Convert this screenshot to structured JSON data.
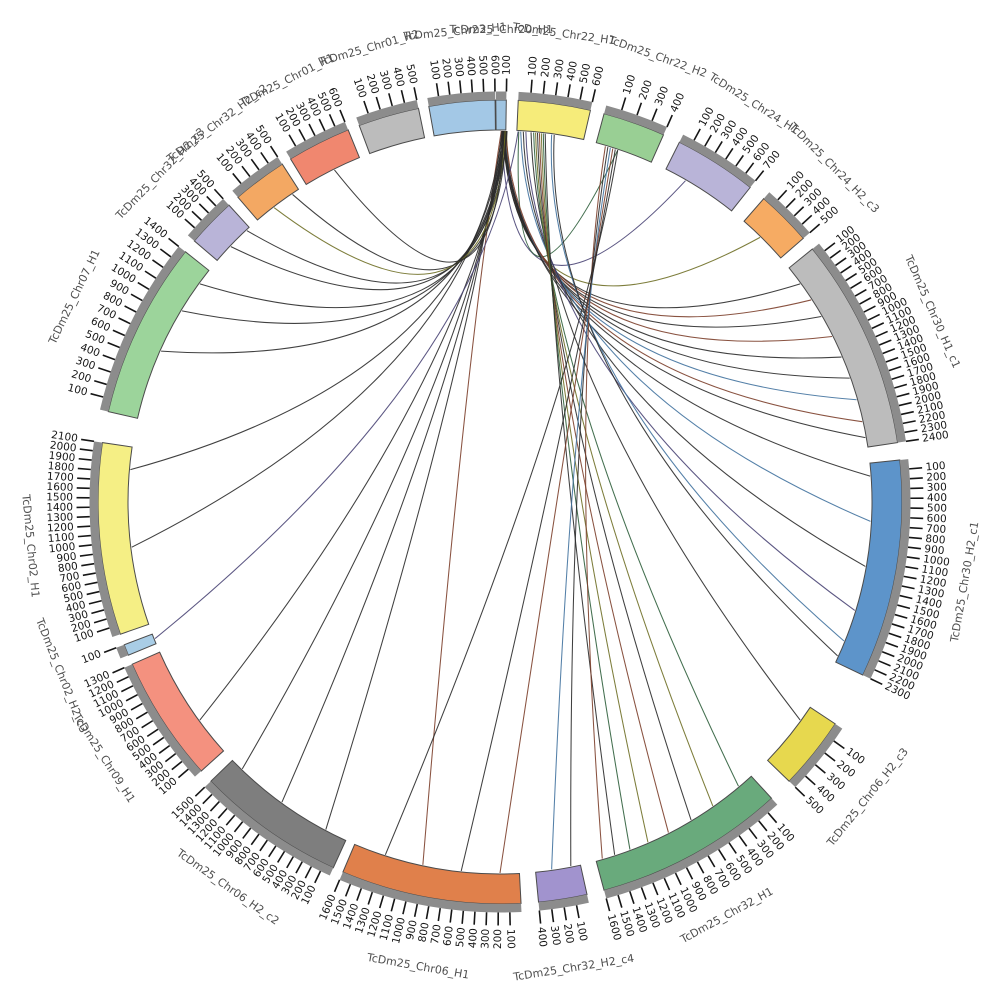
{
  "plot": {
    "background": "#ffffff"
  },
  "chart_data": {
    "type": "chord",
    "title": "",
    "legend": null,
    "grid": false,
    "tick_interval": 100,
    "segments": [
      {
        "label": "TcDm25_Chr20_H1",
        "color": "#9fc4e1",
        "start_deg": -0.6,
        "end_deg": 0.9,
        "max_pos": 100
      },
      {
        "label": "TcDm25_Chr22_H1",
        "color": "#f6ec7a",
        "start_deg": 2.6,
        "end_deg": 13.0,
        "max_pos": 600
      },
      {
        "label": "TcDm25_Chr22_H2",
        "color": "#99cf94",
        "start_deg": 15.0,
        "end_deg": 24.0,
        "max_pos": 400
      },
      {
        "label": "TcDm25_Chr24_H1",
        "color": "#b9b4d8",
        "start_deg": 26.5,
        "end_deg": 38.5,
        "max_pos": 700
      },
      {
        "label": "TcDm25_Chr24_H2_c3",
        "color": "#f6ab63",
        "start_deg": 41.0,
        "end_deg": 49.0,
        "max_pos": 500
      },
      {
        "label": "TcDm25_Chr30_H1_c1",
        "color": "#bcbcbc",
        "start_deg": 51.0,
        "end_deg": 81.5,
        "max_pos": 2400
      },
      {
        "label": "TcDm25_Chr30_H2_c1",
        "color": "#5d94ca",
        "start_deg": 84.0,
        "end_deg": 115.5,
        "max_pos": 2300
      },
      {
        "label": "TcDm25_Chr06_H2_c3",
        "color": "#e7d84e",
        "start_deg": 123.5,
        "end_deg": 134.0,
        "max_pos": 500
      },
      {
        "label": "TcDm25_Chr32_H1",
        "color": "#69aa7c",
        "start_deg": 137.5,
        "end_deg": 165.0,
        "max_pos": 1600
      },
      {
        "label": "TcDm25_Chr32_H2_c4",
        "color": "#a193ce",
        "start_deg": 167.5,
        "end_deg": 174.5,
        "max_pos": 400
      },
      {
        "label": "TcDm25_Chr06_H1",
        "color": "#e0804b",
        "start_deg": 177.0,
        "end_deg": 203.0,
        "max_pos": 1600
      },
      {
        "label": "TcDm25_Chr06_H2_c2",
        "color": "#7e7e7e",
        "start_deg": 204.5,
        "end_deg": 226.0,
        "max_pos": 1500
      },
      {
        "label": "TcDm25_Chr09_H1",
        "color": "#f4917f",
        "start_deg": 228.0,
        "end_deg": 246.2,
        "max_pos": 1300
      },
      {
        "label": "TcDm25_Chr02_H2_c3",
        "color": "#a9cde6",
        "start_deg": 247.6,
        "end_deg": 249.2,
        "max_pos": 100
      },
      {
        "label": "TcDm25_Chr02_H1",
        "color": "#f5ef85",
        "start_deg": 250.8,
        "end_deg": 278.5,
        "max_pos": 2100
      },
      {
        "label": "TcDm25_Chr07_H1",
        "color": "#9cd49b",
        "start_deg": 283.0,
        "end_deg": 308.5,
        "max_pos": 1400
      },
      {
        "label": "TcDm25_Chr32_H2_c3",
        "color": "#b9b4d8",
        "start_deg": 310.5,
        "end_deg": 317.6,
        "max_pos": 500
      },
      {
        "label": "TcDm25_Chr32_H2_c2",
        "color": "#f3a863",
        "start_deg": 319.3,
        "end_deg": 327.2,
        "max_pos": 500
      },
      {
        "label": "TcDm25_Chr01_H1",
        "color": "#f0876f",
        "start_deg": 328.6,
        "end_deg": 337.8,
        "max_pos": 600
      },
      {
        "label": "TcDm25_Chr01_H2",
        "color": "#bcbcbc",
        "start_deg": 339.5,
        "end_deg": 348.3,
        "max_pos": 500
      },
      {
        "label": "TcDm25_Chr23_H1",
        "color": "#a3c8e6",
        "start_deg": 349.8,
        "end_deg": 359.3,
        "max_pos": 600
      }
    ],
    "links": [
      {
        "source_deg": 30.0,
        "target_deg": 0.3,
        "color": "#4a4575"
      },
      {
        "source_deg": 44.5,
        "target_deg": 1.0,
        "color": "#6f6f26"
      },
      {
        "source_deg": 18.5,
        "target_deg": 2.9,
        "color": "#2f5f3c"
      },
      {
        "source_deg": 54.0,
        "target_deg": 0.5,
        "color": "#2b2b2b"
      },
      {
        "source_deg": 57.0,
        "target_deg": 0.7,
        "color": "#7c3f2b"
      },
      {
        "source_deg": 60.0,
        "target_deg": 0.4,
        "color": "#2b2b2b"
      },
      {
        "source_deg": 63.5,
        "target_deg": 0.8,
        "color": "#7c3f2b"
      },
      {
        "source_deg": 67.0,
        "target_deg": 0.5,
        "color": "#2b2b2b"
      },
      {
        "source_deg": 70.5,
        "target_deg": 0.6,
        "color": "#2b2b2b"
      },
      {
        "source_deg": 74.0,
        "target_deg": 0.7,
        "color": "#41729e"
      },
      {
        "source_deg": 77.5,
        "target_deg": 0.9,
        "color": "#7c3f2b"
      },
      {
        "source_deg": 80.0,
        "target_deg": 0.5,
        "color": "#2b2b2b"
      },
      {
        "source_deg": 86.0,
        "target_deg": 0.6,
        "color": "#2b2b2b"
      },
      {
        "source_deg": 93.0,
        "target_deg": 3.2,
        "color": "#41729e"
      },
      {
        "source_deg": 100.0,
        "target_deg": 3.6,
        "color": "#2b2b2b"
      },
      {
        "source_deg": 107.0,
        "target_deg": 4.0,
        "color": "#4a4575"
      },
      {
        "source_deg": 112.0,
        "target_deg": 8.0,
        "color": "#41729e"
      },
      {
        "source_deg": 114.5,
        "target_deg": 8.4,
        "color": "#2b2b2b"
      },
      {
        "source_deg": 126.0,
        "target_deg": 4.8,
        "color": "#2b2b2b"
      },
      {
        "source_deg": 140.0,
        "target_deg": 5.2,
        "color": "#2f5f3c"
      },
      {
        "source_deg": 145.0,
        "target_deg": 5.5,
        "color": "#6f6f26"
      },
      {
        "source_deg": 149.0,
        "target_deg": 5.8,
        "color": "#2b2b2b"
      },
      {
        "source_deg": 153.0,
        "target_deg": 6.1,
        "color": "#7c3f2b"
      },
      {
        "source_deg": 156.5,
        "target_deg": 6.4,
        "color": "#6f6f26"
      },
      {
        "source_deg": 159.5,
        "target_deg": 6.7,
        "color": "#2f5f3c"
      },
      {
        "source_deg": 162.0,
        "target_deg": 7.0,
        "color": "#2b2b2b"
      },
      {
        "source_deg": 164.0,
        "target_deg": 16.5,
        "color": "#7c3f2b"
      },
      {
        "source_deg": 169.0,
        "target_deg": 16.9,
        "color": "#2b2b2b"
      },
      {
        "source_deg": 172.0,
        "target_deg": 17.3,
        "color": "#41729e"
      },
      {
        "source_deg": 180.0,
        "target_deg": 17.7,
        "color": "#7c3f2b"
      },
      {
        "source_deg": 186.0,
        "target_deg": 18.1,
        "color": "#2b2b2b"
      },
      {
        "source_deg": 192.0,
        "target_deg": 0.2,
        "color": "#7c3f2b"
      },
      {
        "source_deg": 198.0,
        "target_deg": 18.5,
        "color": "#2b2b2b"
      },
      {
        "source_deg": 208.0,
        "target_deg": 0.4,
        "color": "#2b2b2b"
      },
      {
        "source_deg": 216.0,
        "target_deg": 0.6,
        "color": "#2b2b2b"
      },
      {
        "source_deg": 224.0,
        "target_deg": 0.8,
        "color": "#2b2b2b"
      },
      {
        "source_deg": 234.0,
        "target_deg": 1.0,
        "color": "#2b2b2b"
      },
      {
        "source_deg": 248.4,
        "target_deg": 2.8,
        "color": "#4a4575"
      },
      {
        "source_deg": 263.0,
        "target_deg": 0.3,
        "color": "#2b2b2b"
      },
      {
        "source_deg": 275.0,
        "target_deg": 0.5,
        "color": "#2b2b2b"
      },
      {
        "source_deg": 294.0,
        "target_deg": 0.7,
        "color": "#2b2b2b"
      },
      {
        "source_deg": 301.0,
        "target_deg": 0.9,
        "color": "#2b2b2b"
      },
      {
        "source_deg": 306.0,
        "target_deg": 1.1,
        "color": "#2b2b2b"
      },
      {
        "source_deg": 313.5,
        "target_deg": 0.4,
        "color": "#2b2b2b"
      },
      {
        "source_deg": 317.0,
        "target_deg": 0.6,
        "color": "#2b2b2b"
      },
      {
        "source_deg": 322.5,
        "target_deg": 0.8,
        "color": "#6f6f26"
      },
      {
        "source_deg": 326.0,
        "target_deg": 1.0,
        "color": "#2b2b2b"
      },
      {
        "source_deg": 333.5,
        "target_deg": 0.6,
        "color": "#2b2b2b"
      }
    ],
    "style": {
      "tick_color": "#161616",
      "tick_band_color": "#8c8c8c",
      "segment_outline_color": "#4b4b4b",
      "segment_label_color": "#4f4f4f"
    }
  }
}
